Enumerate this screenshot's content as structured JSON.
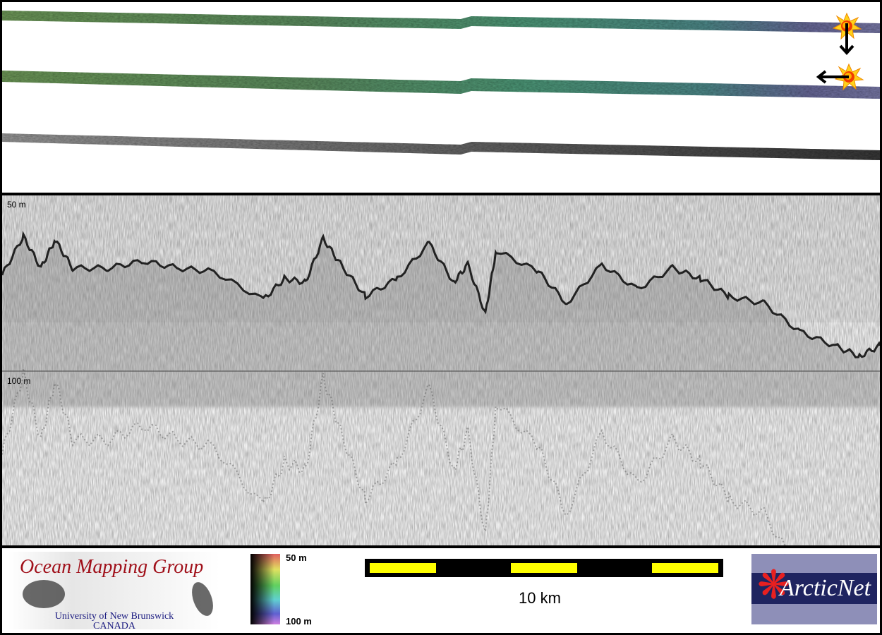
{
  "swath_panel": {
    "strips": [
      "colour-shaded bathymetry (upper)",
      "colour-shaded bathymetry (lower)",
      "backscatter (grey)"
    ],
    "icons": [
      "sun-illumination-icon",
      "arrow-down-icon",
      "sun-illumination-icon",
      "arrow-left-icon"
    ]
  },
  "profile_panel": {
    "depth_labels": [
      "50 m",
      "100 m"
    ]
  },
  "legend": {
    "omg_logo": {
      "title": "Ocean Mapping Group",
      "subtitle_1": "University of New Brunswick",
      "subtitle_2": "CANADA"
    },
    "colorbar": {
      "top_label": "50 m",
      "bottom_label": "100 m"
    },
    "scale_bar": {
      "label": "10 km",
      "colors": [
        "#ffff00",
        "#000000"
      ]
    },
    "arcticnet_logo": {
      "text": "ArcticNet"
    }
  }
}
